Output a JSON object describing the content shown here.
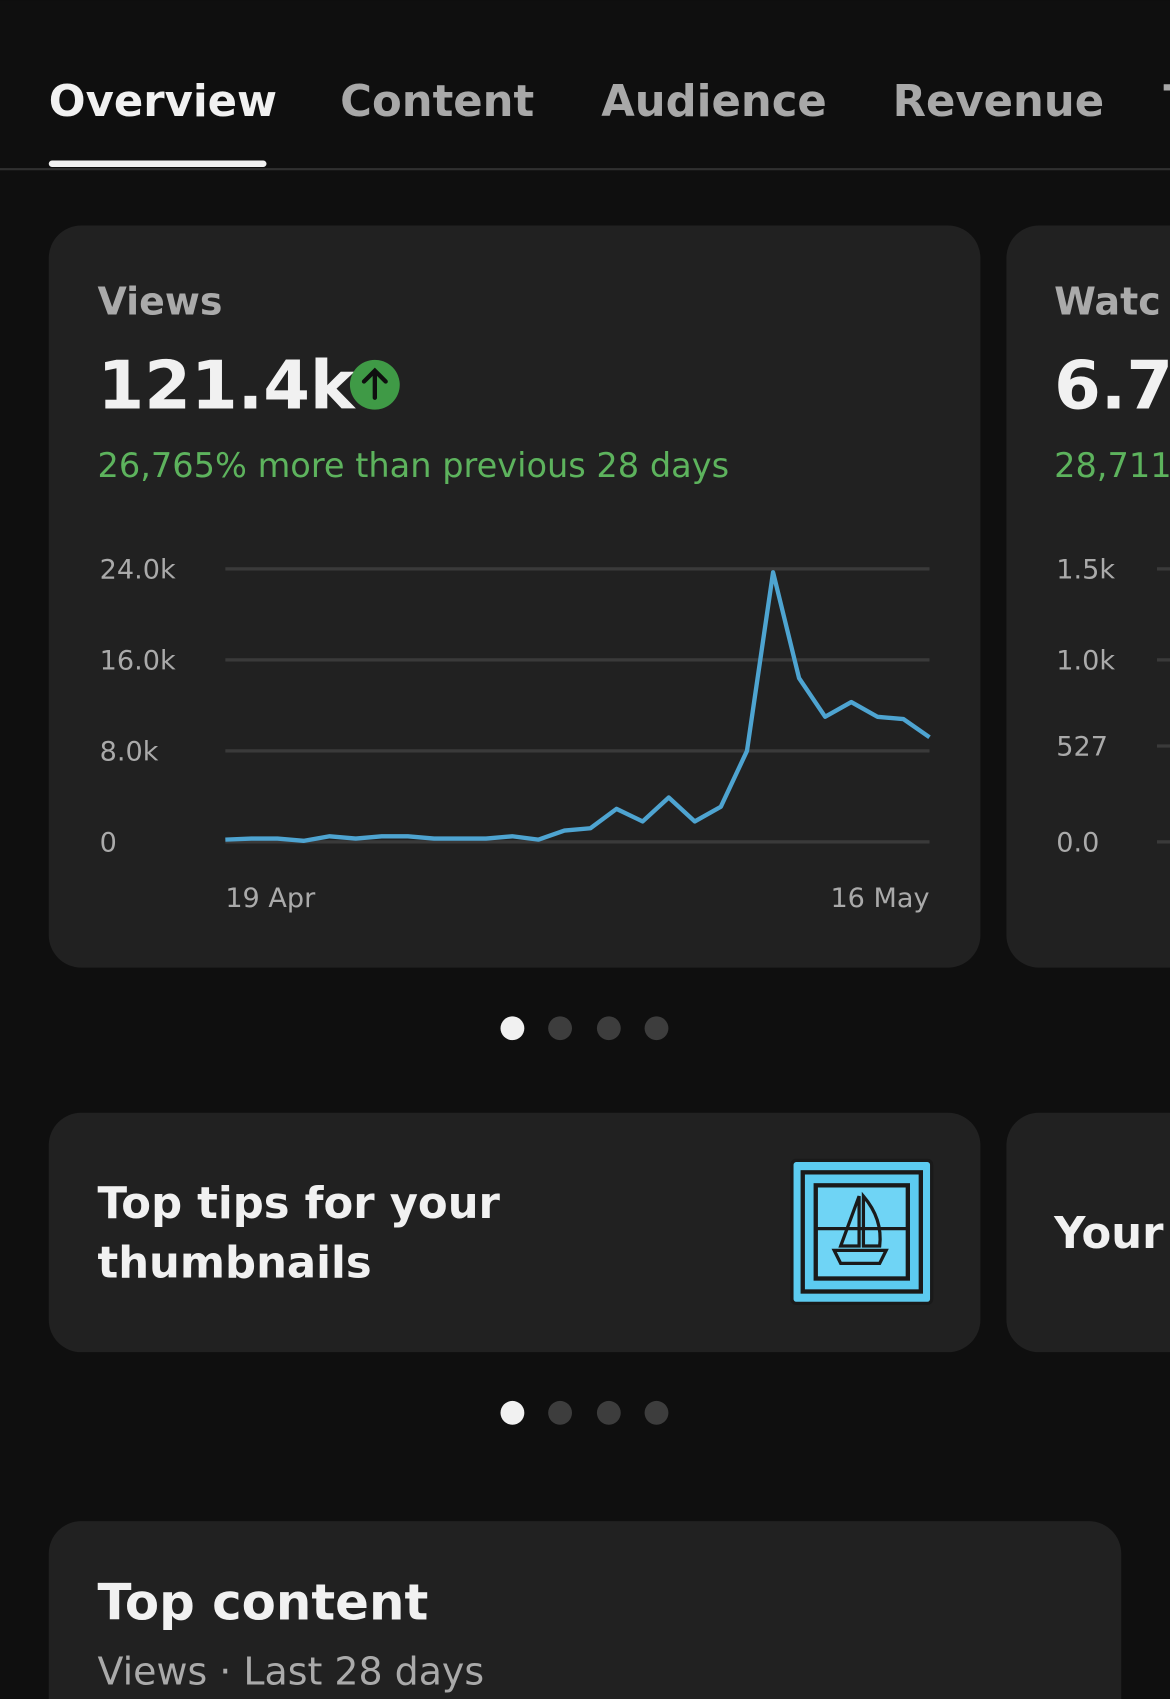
{
  "tabs": [
    "Overview",
    "Content",
    "Audience",
    "Revenue",
    "T"
  ],
  "metric_cards": [
    {
      "label": "Views",
      "value": "121.4k",
      "change": "26,765% more than previous 28 days",
      "chart": {
        "type": "line",
        "categories": [
          "19 Apr",
          null,
          null,
          null,
          null,
          null,
          null,
          null,
          null,
          null,
          null,
          null,
          null,
          null,
          null,
          null,
          null,
          null,
          null,
          null,
          null,
          null,
          null,
          null,
          null,
          null,
          null,
          "16 May"
        ],
        "values": [
          200,
          300,
          300,
          100,
          500,
          300,
          500,
          500,
          300,
          300,
          300,
          500,
          200,
          1000,
          1200,
          2900,
          1800,
          3900,
          1800,
          3100,
          8000,
          23700,
          14400,
          11000,
          12300,
          11000,
          10800,
          9200
        ],
        "color": "#4ea4d1",
        "ylim": [
          0,
          24000
        ],
        "yticks": [
          {
            "value": 0,
            "label": "0"
          },
          {
            "value": 8000,
            "label": "8.0k"
          },
          {
            "value": 16000,
            "label": "16.0k"
          },
          {
            "value": 24000,
            "label": "24.0k"
          }
        ],
        "grid": true
      }
    },
    {
      "label": "Watc",
      "value": "6.7",
      "change": "28,711",
      "chart": {
        "ylim": [
          0,
          1500
        ],
        "yticks": [
          {
            "value": 0,
            "label": "0.0"
          },
          {
            "value": 527,
            "label": "527"
          },
          {
            "value": 1000,
            "label": "1.0k"
          },
          {
            "value": 1500,
            "label": "1.5k"
          }
        ],
        "grid": true
      }
    }
  ],
  "tip_cards": [
    {
      "title_lines": [
        "Top tips for your",
        "thumbnails"
      ]
    },
    {
      "title_lines": [
        "Your"
      ]
    }
  ],
  "top_content": {
    "title": "Top content",
    "subtitle": "Views · Last 28 days"
  }
}
